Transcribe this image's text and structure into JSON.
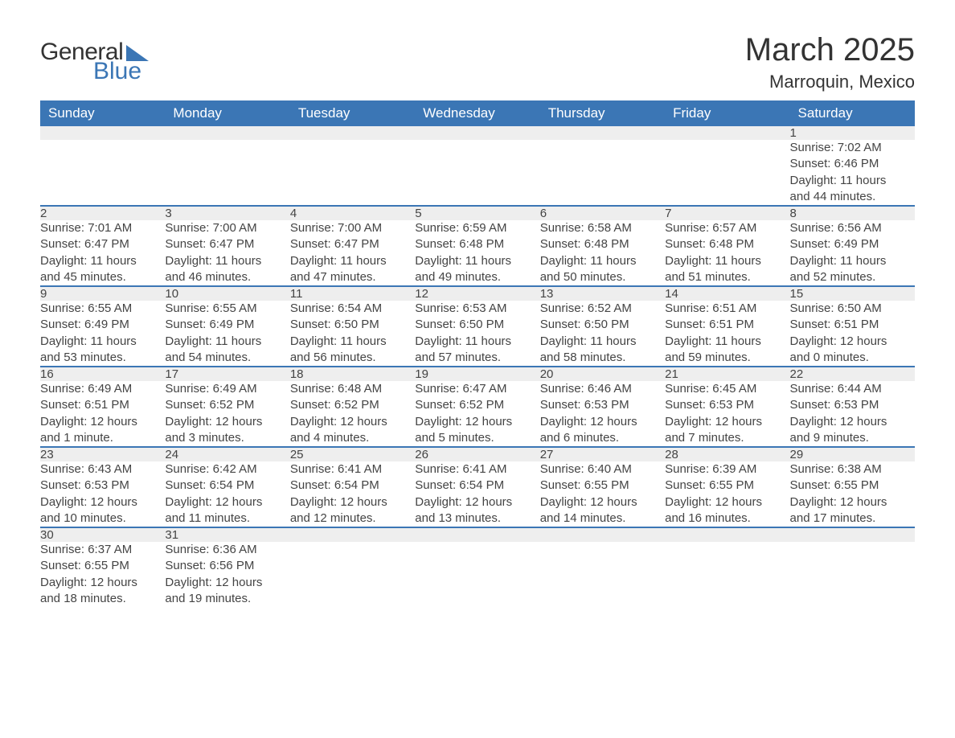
{
  "logo": {
    "line1": "General",
    "line2": "Blue"
  },
  "title": "March 2025",
  "location": "Marroquin, Mexico",
  "colors": {
    "header_bg": "#3b76b5",
    "header_text": "#ffffff",
    "daynum_bg": "#eeeeee",
    "row_border": "#3b76b5",
    "body_text": "#444444",
    "page_bg": "#ffffff"
  },
  "weekdays": [
    "Sunday",
    "Monday",
    "Tuesday",
    "Wednesday",
    "Thursday",
    "Friday",
    "Saturday"
  ],
  "weeks": [
    {
      "nums": [
        "",
        "",
        "",
        "",
        "",
        "",
        "1"
      ],
      "cells": [
        null,
        null,
        null,
        null,
        null,
        null,
        {
          "sunrise": "Sunrise: 7:02 AM",
          "sunset": "Sunset: 6:46 PM",
          "day1": "Daylight: 11 hours",
          "day2": "and 44 minutes."
        }
      ]
    },
    {
      "nums": [
        "2",
        "3",
        "4",
        "5",
        "6",
        "7",
        "8"
      ],
      "cells": [
        {
          "sunrise": "Sunrise: 7:01 AM",
          "sunset": "Sunset: 6:47 PM",
          "day1": "Daylight: 11 hours",
          "day2": "and 45 minutes."
        },
        {
          "sunrise": "Sunrise: 7:00 AM",
          "sunset": "Sunset: 6:47 PM",
          "day1": "Daylight: 11 hours",
          "day2": "and 46 minutes."
        },
        {
          "sunrise": "Sunrise: 7:00 AM",
          "sunset": "Sunset: 6:47 PM",
          "day1": "Daylight: 11 hours",
          "day2": "and 47 minutes."
        },
        {
          "sunrise": "Sunrise: 6:59 AM",
          "sunset": "Sunset: 6:48 PM",
          "day1": "Daylight: 11 hours",
          "day2": "and 49 minutes."
        },
        {
          "sunrise": "Sunrise: 6:58 AM",
          "sunset": "Sunset: 6:48 PM",
          "day1": "Daylight: 11 hours",
          "day2": "and 50 minutes."
        },
        {
          "sunrise": "Sunrise: 6:57 AM",
          "sunset": "Sunset: 6:48 PM",
          "day1": "Daylight: 11 hours",
          "day2": "and 51 minutes."
        },
        {
          "sunrise": "Sunrise: 6:56 AM",
          "sunset": "Sunset: 6:49 PM",
          "day1": "Daylight: 11 hours",
          "day2": "and 52 minutes."
        }
      ]
    },
    {
      "nums": [
        "9",
        "10",
        "11",
        "12",
        "13",
        "14",
        "15"
      ],
      "cells": [
        {
          "sunrise": "Sunrise: 6:55 AM",
          "sunset": "Sunset: 6:49 PM",
          "day1": "Daylight: 11 hours",
          "day2": "and 53 minutes."
        },
        {
          "sunrise": "Sunrise: 6:55 AM",
          "sunset": "Sunset: 6:49 PM",
          "day1": "Daylight: 11 hours",
          "day2": "and 54 minutes."
        },
        {
          "sunrise": "Sunrise: 6:54 AM",
          "sunset": "Sunset: 6:50 PM",
          "day1": "Daylight: 11 hours",
          "day2": "and 56 minutes."
        },
        {
          "sunrise": "Sunrise: 6:53 AM",
          "sunset": "Sunset: 6:50 PM",
          "day1": "Daylight: 11 hours",
          "day2": "and 57 minutes."
        },
        {
          "sunrise": "Sunrise: 6:52 AM",
          "sunset": "Sunset: 6:50 PM",
          "day1": "Daylight: 11 hours",
          "day2": "and 58 minutes."
        },
        {
          "sunrise": "Sunrise: 6:51 AM",
          "sunset": "Sunset: 6:51 PM",
          "day1": "Daylight: 11 hours",
          "day2": "and 59 minutes."
        },
        {
          "sunrise": "Sunrise: 6:50 AM",
          "sunset": "Sunset: 6:51 PM",
          "day1": "Daylight: 12 hours",
          "day2": "and 0 minutes."
        }
      ]
    },
    {
      "nums": [
        "16",
        "17",
        "18",
        "19",
        "20",
        "21",
        "22"
      ],
      "cells": [
        {
          "sunrise": "Sunrise: 6:49 AM",
          "sunset": "Sunset: 6:51 PM",
          "day1": "Daylight: 12 hours",
          "day2": "and 1 minute."
        },
        {
          "sunrise": "Sunrise: 6:49 AM",
          "sunset": "Sunset: 6:52 PM",
          "day1": "Daylight: 12 hours",
          "day2": "and 3 minutes."
        },
        {
          "sunrise": "Sunrise: 6:48 AM",
          "sunset": "Sunset: 6:52 PM",
          "day1": "Daylight: 12 hours",
          "day2": "and 4 minutes."
        },
        {
          "sunrise": "Sunrise: 6:47 AM",
          "sunset": "Sunset: 6:52 PM",
          "day1": "Daylight: 12 hours",
          "day2": "and 5 minutes."
        },
        {
          "sunrise": "Sunrise: 6:46 AM",
          "sunset": "Sunset: 6:53 PM",
          "day1": "Daylight: 12 hours",
          "day2": "and 6 minutes."
        },
        {
          "sunrise": "Sunrise: 6:45 AM",
          "sunset": "Sunset: 6:53 PM",
          "day1": "Daylight: 12 hours",
          "day2": "and 7 minutes."
        },
        {
          "sunrise": "Sunrise: 6:44 AM",
          "sunset": "Sunset: 6:53 PM",
          "day1": "Daylight: 12 hours",
          "day2": "and 9 minutes."
        }
      ]
    },
    {
      "nums": [
        "23",
        "24",
        "25",
        "26",
        "27",
        "28",
        "29"
      ],
      "cells": [
        {
          "sunrise": "Sunrise: 6:43 AM",
          "sunset": "Sunset: 6:53 PM",
          "day1": "Daylight: 12 hours",
          "day2": "and 10 minutes."
        },
        {
          "sunrise": "Sunrise: 6:42 AM",
          "sunset": "Sunset: 6:54 PM",
          "day1": "Daylight: 12 hours",
          "day2": "and 11 minutes."
        },
        {
          "sunrise": "Sunrise: 6:41 AM",
          "sunset": "Sunset: 6:54 PM",
          "day1": "Daylight: 12 hours",
          "day2": "and 12 minutes."
        },
        {
          "sunrise": "Sunrise: 6:41 AM",
          "sunset": "Sunset: 6:54 PM",
          "day1": "Daylight: 12 hours",
          "day2": "and 13 minutes."
        },
        {
          "sunrise": "Sunrise: 6:40 AM",
          "sunset": "Sunset: 6:55 PM",
          "day1": "Daylight: 12 hours",
          "day2": "and 14 minutes."
        },
        {
          "sunrise": "Sunrise: 6:39 AM",
          "sunset": "Sunset: 6:55 PM",
          "day1": "Daylight: 12 hours",
          "day2": "and 16 minutes."
        },
        {
          "sunrise": "Sunrise: 6:38 AM",
          "sunset": "Sunset: 6:55 PM",
          "day1": "Daylight: 12 hours",
          "day2": "and 17 minutes."
        }
      ]
    },
    {
      "nums": [
        "30",
        "31",
        "",
        "",
        "",
        "",
        ""
      ],
      "cells": [
        {
          "sunrise": "Sunrise: 6:37 AM",
          "sunset": "Sunset: 6:55 PM",
          "day1": "Daylight: 12 hours",
          "day2": "and 18 minutes."
        },
        {
          "sunrise": "Sunrise: 6:36 AM",
          "sunset": "Sunset: 6:56 PM",
          "day1": "Daylight: 12 hours",
          "day2": "and 19 minutes."
        },
        null,
        null,
        null,
        null,
        null
      ]
    }
  ]
}
